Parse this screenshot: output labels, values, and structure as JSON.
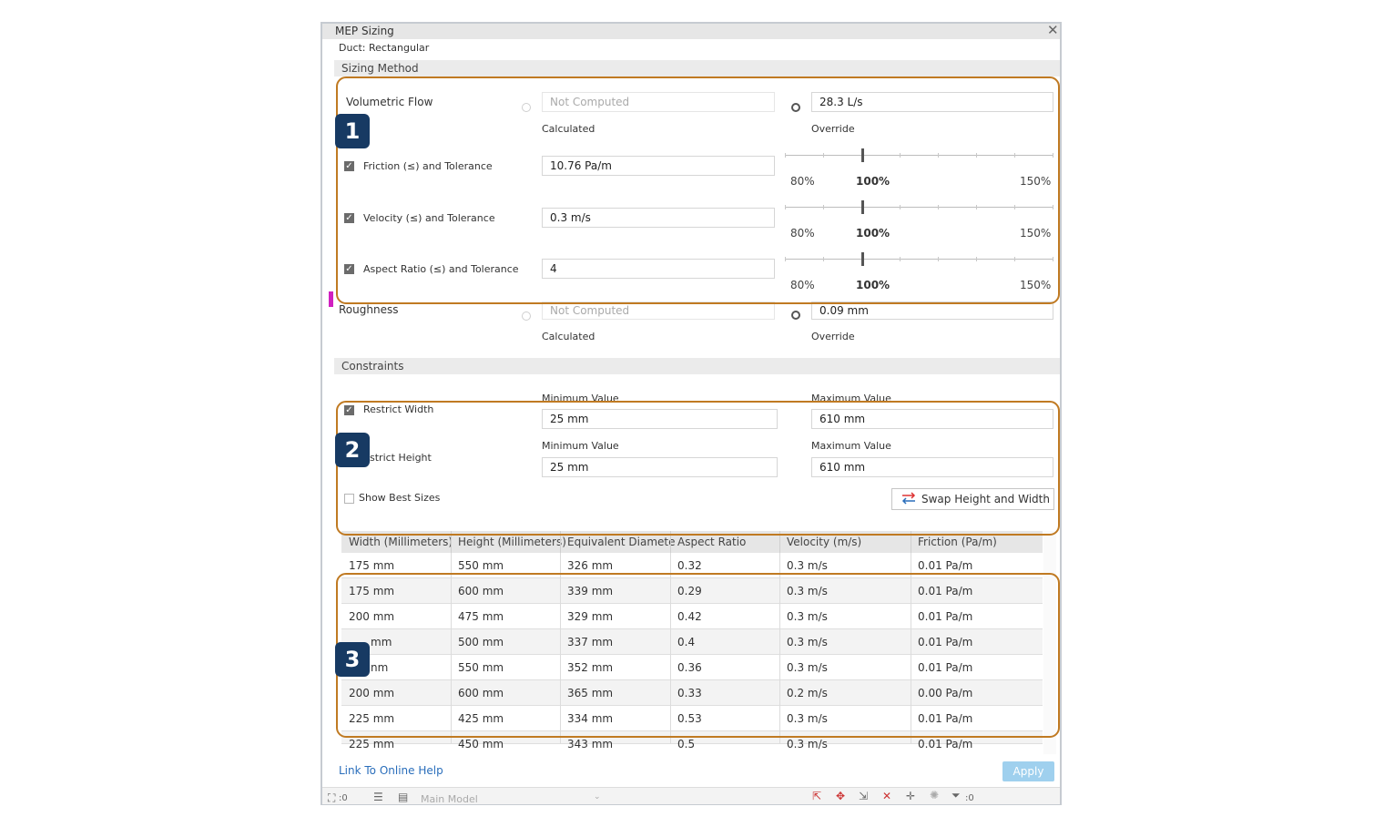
{
  "window": {
    "title": "MEP Sizing",
    "close_glyph": "✕"
  },
  "element_type": "Duct: Rectangular",
  "sections": {
    "sizing_method": "Sizing Method",
    "constraints": "Constraints"
  },
  "volumetric_flow": {
    "label": "Volumetric Flow",
    "calculated_value": "Not Computed",
    "calculated_caption": "Calculated",
    "override_value": "28.3 L/s",
    "override_caption": "Override",
    "selected": "override"
  },
  "criteria": [
    {
      "label": "Friction (≤) and Tolerance",
      "value": "10.76 Pa/m",
      "checked": true,
      "tolerance": {
        "min": "80%",
        "current": "100%",
        "max": "150%",
        "level": 100
      }
    },
    {
      "label": "Velocity (≤) and Tolerance",
      "value": "0.3 m/s",
      "checked": true,
      "tolerance": {
        "min": "80%",
        "current": "100%",
        "max": "150%",
        "level": 100
      }
    },
    {
      "label": "Aspect Ratio (≤) and Tolerance",
      "value": "4",
      "checked": true,
      "tolerance": {
        "min": "80%",
        "current": "100%",
        "max": "150%",
        "level": 100
      }
    }
  ],
  "roughness": {
    "label": "Roughness",
    "calculated_value": "Not Computed",
    "calculated_caption": "Calculated",
    "override_value": "0.09 mm",
    "override_caption": "Override",
    "selected": "override"
  },
  "constraints": {
    "width": {
      "label": "Restrict Width",
      "checked": true,
      "min_label": "Minimum Value",
      "min": "25 mm",
      "max_label": "Maximum Value",
      "max": "610 mm"
    },
    "height": {
      "label": "stri ct Height",
      "min_label": "Minimum Value",
      "min": "25 mm",
      "max_label": "Maximum Value",
      "max": "610 mm"
    },
    "show_best_sizes": {
      "label": "Show Best Sizes",
      "checked": false
    },
    "swap_button": "Swap Height and Width"
  },
  "table": {
    "columns": [
      "Width (Millimeters)",
      "Height (Millimeters)",
      "Equivalent Diamete",
      "Aspect Ratio",
      "Velocity (m/s)",
      "Friction (Pa/m)"
    ],
    "rows": [
      [
        "175 mm",
        "550 mm",
        "326 mm",
        "0.32",
        "0.3 m/s",
        "0.01 Pa/m"
      ],
      [
        "175 mm",
        "600 mm",
        "339 mm",
        "0.29",
        "0.3 m/s",
        "0.01 Pa/m"
      ],
      [
        "200 mm",
        "475 mm",
        "329 mm",
        "0.42",
        "0.3 m/s",
        "0.01 Pa/m"
      ],
      [
        "mm",
        "500 mm",
        "337 mm",
        "0.4",
        "0.3 m/s",
        "0.01 Pa/m"
      ],
      [
        "nm",
        "550 mm",
        "352 mm",
        "0.36",
        "0.3 m/s",
        "0.01 Pa/m"
      ],
      [
        "200 mm",
        "600 mm",
        "365 mm",
        "0.33",
        "0.2 m/s",
        "0.00 Pa/m"
      ],
      [
        "225 mm",
        "425 mm",
        "334 mm",
        "0.53",
        "0.3 m/s",
        "0.01 Pa/m"
      ],
      [
        "225 mm",
        "450 mm",
        "343 mm",
        "0.5",
        "0.3 m/s",
        "0.01 Pa/m"
      ]
    ]
  },
  "footer": {
    "help_link": "Link To Online Help",
    "apply": "Apply"
  },
  "statusbar": {
    "left_count": ":0",
    "model": "Main Model",
    "filter_count": ":0"
  },
  "callouts": [
    "1",
    "2",
    "3"
  ],
  "colors": {
    "callout_border": "#c07a22",
    "badge": "#173a63",
    "apply": "#9fd0ee",
    "link": "#2a6ebb"
  }
}
